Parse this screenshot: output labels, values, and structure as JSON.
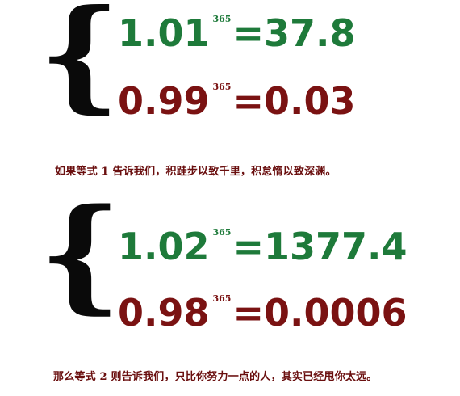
{
  "brace_glyph": "{",
  "equations": [
    {
      "base": "1.01",
      "exponent": "365",
      "result": "=37.8",
      "color": "#1e7a3a"
    },
    {
      "base": "0.99",
      "exponent": "365",
      "result": "=0.03",
      "color": "#7a1212"
    },
    {
      "base": "1.02",
      "exponent": "365",
      "result": "=1377.4",
      "color": "#1e7a3a"
    },
    {
      "base": "0.98",
      "exponent": "365",
      "result": "=0.0006",
      "color": "#7a1212"
    }
  ],
  "captions": [
    "如果等式 1 告诉我们，积跬步以致千里，积怠惰以致深渊。",
    "那么等式 2 则告诉我们，只比你努力一点的人，其实已经甩你太远。"
  ]
}
